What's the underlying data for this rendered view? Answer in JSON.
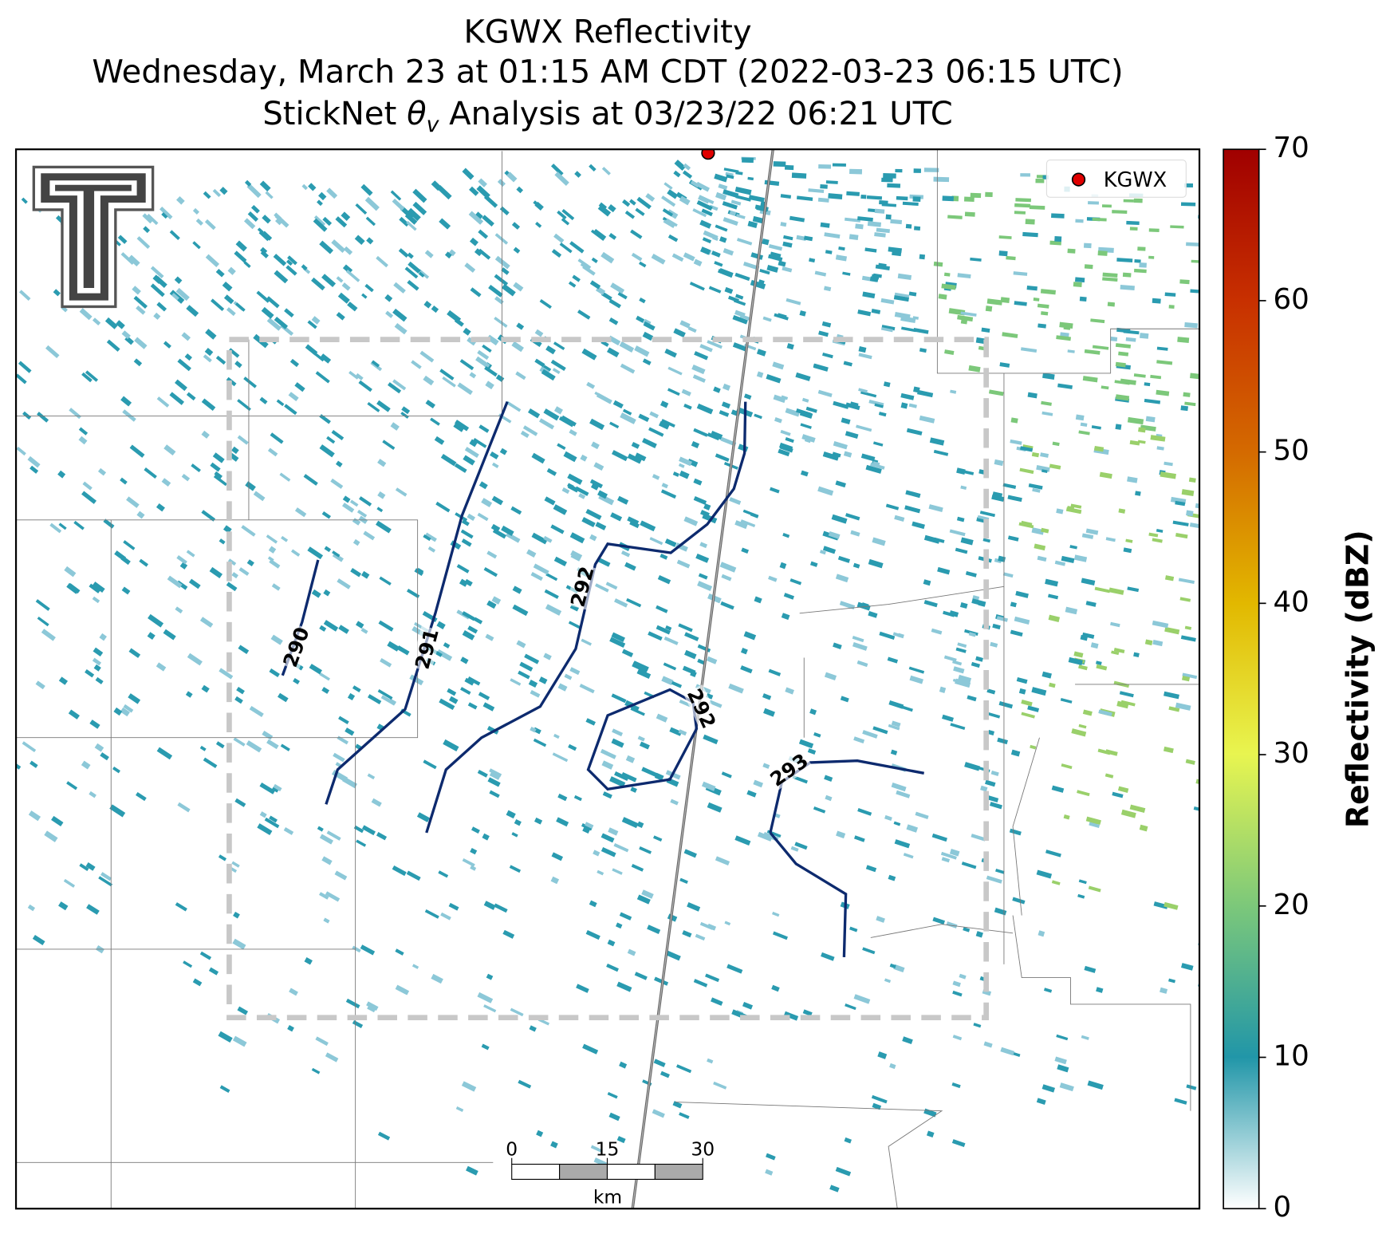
{
  "header": {
    "title": "KGWX Reflectivity",
    "subtitle": "Wednesday, March 23 at 01:15 AM CDT (2022-03-23 06:15 UTC)",
    "analysis_title": {
      "prefix": "StickNet",
      "symbol": "θ",
      "subscript": "v",
      "suffix": "Analysis at 03/23/22 06:21 UTC"
    }
  },
  "legend": {
    "label": "KGWX",
    "color": "#e00000"
  },
  "colorbar": {
    "label": "Reflectivity (dBZ)",
    "lim": [
      0,
      70
    ],
    "ticks": [
      0,
      10,
      20,
      30,
      40,
      50,
      60,
      70
    ]
  },
  "contours": [
    {
      "level": 290
    },
    {
      "level": 291
    },
    {
      "level": 292
    },
    {
      "level": 292
    },
    {
      "level": 293
    }
  ],
  "scalebar": {
    "ticks": [
      0,
      15,
      30
    ],
    "unit": "km"
  }
}
